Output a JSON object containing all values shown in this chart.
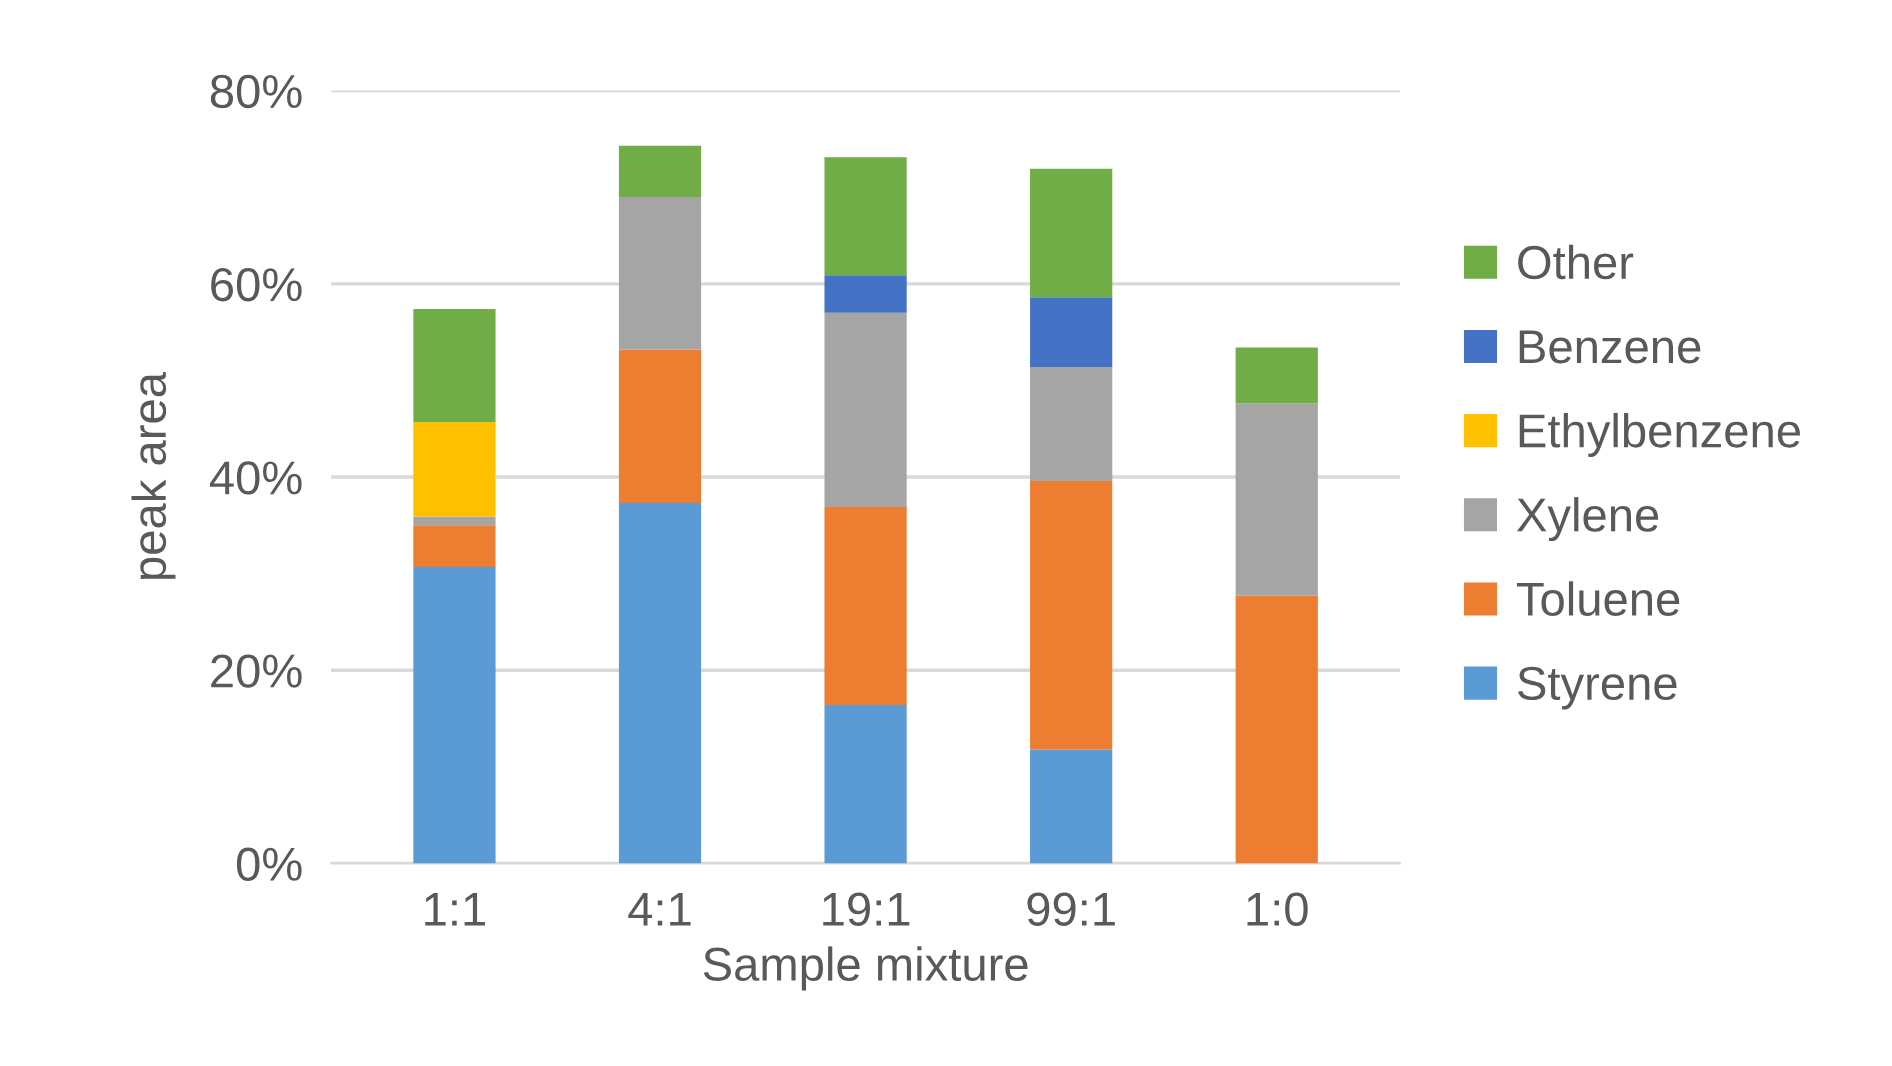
{
  "chart_data": {
    "type": "bar",
    "stacked": true,
    "xlabel": "Sample mixture",
    "ylabel": "peak area",
    "categories": [
      "1:1",
      "4:1",
      "19:1",
      "99:1",
      "1:0"
    ],
    "series": [
      {
        "name": "Styrene",
        "color": "#5b9bd5",
        "values": [
          30.7,
          37.3,
          16.4,
          11.8,
          0
        ]
      },
      {
        "name": "Toluene",
        "color": "#ed7d31",
        "values": [
          4.3,
          15.9,
          20.5,
          27.8,
          27.7
        ]
      },
      {
        "name": "Xylene",
        "color": "#a5a5a5",
        "values": [
          0.9,
          15.8,
          20.1,
          11.8,
          19.9
        ]
      },
      {
        "name": "Ethylbenzene",
        "color": "#ffc000",
        "values": [
          9.8,
          0,
          0,
          0,
          0
        ]
      },
      {
        "name": "Benzene",
        "color": "#4472c4",
        "values": [
          0,
          0,
          3.9,
          7.2,
          0
        ]
      },
      {
        "name": "Other",
        "color": "#70ad47",
        "values": [
          11.7,
          5.3,
          12.2,
          13.3,
          5.8
        ]
      }
    ],
    "ylim": [
      0,
      80
    ],
    "yticks": [
      {
        "value": 0,
        "label": "0%"
      },
      {
        "value": 20,
        "label": "20%"
      },
      {
        "value": 40,
        "label": "40%"
      },
      {
        "value": 60,
        "label": "60%"
      },
      {
        "value": 80,
        "label": "80%"
      }
    ],
    "grid": "y",
    "legend": "right"
  }
}
